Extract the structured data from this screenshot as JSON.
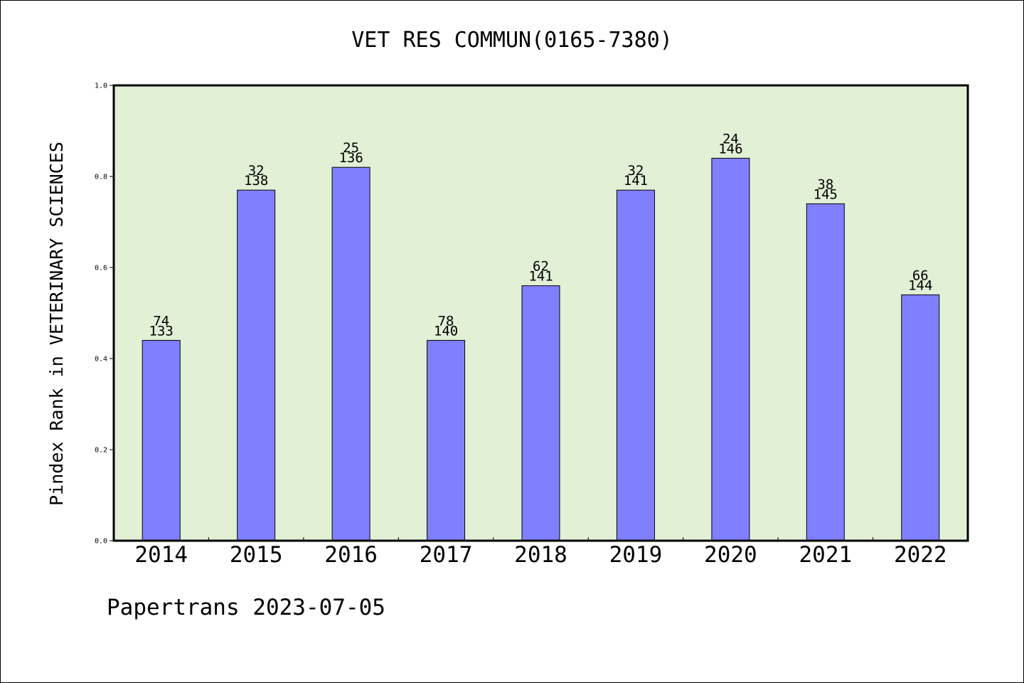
{
  "chart_data": {
    "type": "bar",
    "title": "VET RES COMMUN(0165-7380)",
    "xlabel": "",
    "ylabel": "Pindex Rank in VETERINARY SCIENCES",
    "ylim": [
      0,
      1.0
    ],
    "yticks": [
      "0.0",
      "0.2",
      "0.4",
      "0.6",
      "0.8",
      "1.0"
    ],
    "categories": [
      "2014",
      "2015",
      "2016",
      "2017",
      "2018",
      "2019",
      "2020",
      "2021",
      "2022"
    ],
    "values": [
      0.44,
      0.77,
      0.82,
      0.44,
      0.56,
      0.77,
      0.84,
      0.74,
      0.54
    ],
    "rank_labels": [
      "74",
      "32",
      "25",
      "78",
      "62",
      "32",
      "24",
      "38",
      "66"
    ],
    "total_labels": [
      "133",
      "138",
      "136",
      "140",
      "141",
      "141",
      "146",
      "145",
      "144"
    ],
    "grid": false,
    "colors": {
      "bar": "#8080ff",
      "plot_bg": "#e2f0d6",
      "border": "#000000"
    }
  },
  "footer": "Papertrans 2023-07-05"
}
